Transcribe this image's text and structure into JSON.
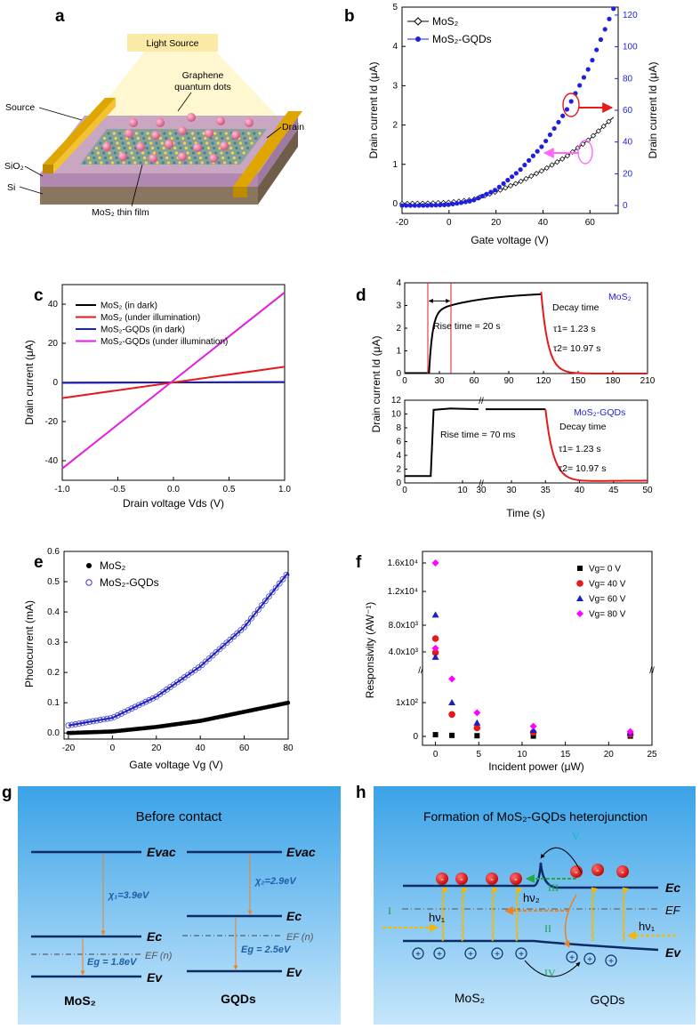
{
  "panels": {
    "a": {
      "label": "a",
      "light_source": "Light Source",
      "gqd_label_1": "Graphene",
      "gqd_label_2": "quantum dots",
      "source": "Source",
      "drain": "Drain",
      "sio2": "SiO₂",
      "si": "Si",
      "film": "MoS₂ thin film"
    },
    "g": {
      "label": "g",
      "title": "Before  contact",
      "evac": "Evac",
      "ec": "Ec",
      "ev": "Ev",
      "ef": "EF (n)",
      "chi_mos2": "χ₁=3.9eV",
      "chi_gqd": "χ₂=2.9eV",
      "eg_mos2": "Eg = 1.8eV",
      "eg_gqd": "Eg = 2.5eV",
      "mos2": "MoS₂",
      "gqds": "GQDs"
    },
    "h": {
      "label": "h",
      "title": "Formation of MoS₂-GQDs heterojunction",
      "ec": "Ec",
      "ef": "EF",
      "ev": "Ev",
      "hv1": "hν₁",
      "hv2": "hν₂",
      "r1": "I",
      "r2": "II",
      "r3": "III",
      "r4": "IV",
      "r5": "V",
      "mos2": "MoS₂",
      "gqds": "GQDs"
    }
  },
  "chart_data": [
    {
      "id": "b",
      "label": "b",
      "type": "scatter",
      "xlabel": "Gate voltage (V)",
      "ylabel": "Drain current Id (μA)",
      "y2label": "Drain current Id (μA)",
      "xlim": [
        -20,
        72
      ],
      "ylim": [
        -0.25,
        5
      ],
      "y2lim": [
        -5,
        125
      ],
      "xticks": [
        -20,
        0,
        20,
        40,
        60
      ],
      "yticks": [
        0,
        1,
        2,
        3,
        4,
        5
      ],
      "y2ticks": [
        0,
        20,
        40,
        60,
        80,
        100,
        120
      ],
      "series": [
        {
          "name": "MoS₂",
          "axis": "left",
          "x": [
            -20,
            -10,
            0,
            10,
            20,
            30,
            40,
            50,
            60,
            70
          ],
          "y": [
            0,
            0.01,
            0.03,
            0.1,
            0.3,
            0.55,
            0.85,
            1.2,
            1.65,
            2.2
          ]
        },
        {
          "name": "MoS₂-GQDs",
          "axis": "right",
          "x": [
            -20,
            -10,
            0,
            10,
            20,
            30,
            40,
            50,
            60,
            70
          ],
          "y": [
            0,
            0,
            0.5,
            3,
            10,
            22,
            38,
            60,
            88,
            124
          ]
        }
      ]
    },
    {
      "id": "c",
      "label": "c",
      "type": "line",
      "xlabel": "Drain voltage Vds (V)",
      "ylabel": "Drain current (μA)",
      "xlim": [
        -1.0,
        1.0
      ],
      "ylim": [
        -50,
        50
      ],
      "xticks": [
        "-1.0",
        "-0.5",
        "0.0",
        "0.5",
        "1.0"
      ],
      "yticks": [
        -40,
        -20,
        0,
        20,
        40
      ],
      "series": [
        {
          "name": "MoS₂ (in dark)",
          "color": "#000000",
          "x": [
            -1,
            1
          ],
          "y": [
            -0.1,
            0.1
          ]
        },
        {
          "name": "MoS₂ (under illumination)",
          "color": "#e41a1c",
          "x": [
            -1,
            1
          ],
          "y": [
            -8,
            8
          ]
        },
        {
          "name": "MoS₂-GQDs (in dark)",
          "color": "#1f1fbf",
          "x": [
            -1,
            1
          ],
          "y": [
            -0.2,
            0.2
          ]
        },
        {
          "name": "MoS₂-GQDs (under illumination)",
          "color": "#e01ee0",
          "x": [
            -1,
            1
          ],
          "y": [
            -44,
            46
          ]
        }
      ]
    },
    {
      "id": "d",
      "label": "d",
      "type": "line",
      "xlabel": "Time (s)",
      "ylabel": "Drain current Id (μA)",
      "top": {
        "tag": "MoS₂",
        "xlim": [
          0,
          210
        ],
        "ylim": [
          0,
          4
        ],
        "xticks": [
          0,
          30,
          60,
          90,
          120,
          150,
          180,
          210
        ],
        "yticks": [
          0,
          1,
          2,
          3,
          4
        ],
        "rise": "Rise time = 20 s",
        "decay": "Decay time",
        "tau1": "τ1= 1.23 s",
        "tau2": "τ2= 10.97 s"
      },
      "bottom": {
        "tag": "MoS₂-GQDs",
        "xlim": [
          0,
          50
        ],
        "ylim": [
          0,
          12
        ],
        "xticks": [
          0,
          10,
          30,
          35,
          40,
          45,
          50
        ],
        "yticks": [
          0,
          2,
          4,
          6,
          8,
          10,
          12
        ],
        "rise": "Rise time = 70 ms",
        "decay": "Decay time",
        "tau1": "τ1= 1.23 s",
        "tau2": "τ2= 10.97 s"
      }
    },
    {
      "id": "e",
      "label": "e",
      "type": "scatter",
      "xlabel": "Gate voltage Vg (V)",
      "ylabel": "Photocurrent (mA)",
      "xlim": [
        -22,
        80
      ],
      "ylim": [
        -0.02,
        0.6
      ],
      "xticks": [
        -20,
        0,
        20,
        40,
        60,
        80
      ],
      "yticks": [
        "0.0",
        "0.1",
        "0.2",
        "0.3",
        "0.4",
        "0.5",
        "0.6"
      ],
      "series": [
        {
          "name": "MoS₂",
          "x": [
            -20,
            0,
            20,
            40,
            60,
            80
          ],
          "y": [
            0,
            0.005,
            0.02,
            0.04,
            0.07,
            0.1
          ]
        },
        {
          "name": "MoS₂-GQDs",
          "x": [
            -20,
            0,
            20,
            40,
            60,
            80
          ],
          "y": [
            0.025,
            0.05,
            0.12,
            0.22,
            0.35,
            0.53
          ]
        }
      ]
    },
    {
      "id": "f",
      "label": "f",
      "type": "scatter",
      "xlabel": "Incident power (μW)",
      "ylabel": "Responsivity (AW⁻¹)",
      "xlim": [
        -1.5,
        25
      ],
      "xticks": [
        0,
        5,
        10,
        15,
        20,
        25
      ],
      "yticks_top": [
        "1.6x10⁴",
        "1.2x10⁴",
        "8.0x10³",
        "4.0x10³"
      ],
      "yticks_bottom": [
        "1x10²",
        "0"
      ],
      "series": [
        {
          "name": "Vg= 0 V",
          "color": "#000000",
          "marker": "square",
          "x": [
            0,
            1.9,
            4.8,
            11.3,
            22.5
          ],
          "y": [
            5,
            3,
            2,
            1,
            1
          ]
        },
        {
          "name": "Vg= 40 V",
          "color": "#e41a1c",
          "marker": "circle",
          "x": [
            0,
            0,
            1.9,
            4.8,
            11.3,
            22.5
          ],
          "y": [
            5800,
            3900,
            65,
            25,
            12,
            6
          ]
        },
        {
          "name": "Vg= 60 V",
          "color": "#1f1fbf",
          "marker": "triangle",
          "x": [
            0,
            0,
            1.9,
            4.8,
            11.3,
            22.5
          ],
          "y": [
            9000,
            3300,
            100,
            40,
            18,
            10
          ]
        },
        {
          "name": "Vg= 80 V",
          "color": "#ff00ff",
          "marker": "diamond",
          "x": [
            0,
            0,
            1.9,
            4.8,
            11.3,
            22.5
          ],
          "y": [
            16000,
            4500,
            170,
            70,
            30,
            14
          ]
        }
      ]
    }
  ]
}
